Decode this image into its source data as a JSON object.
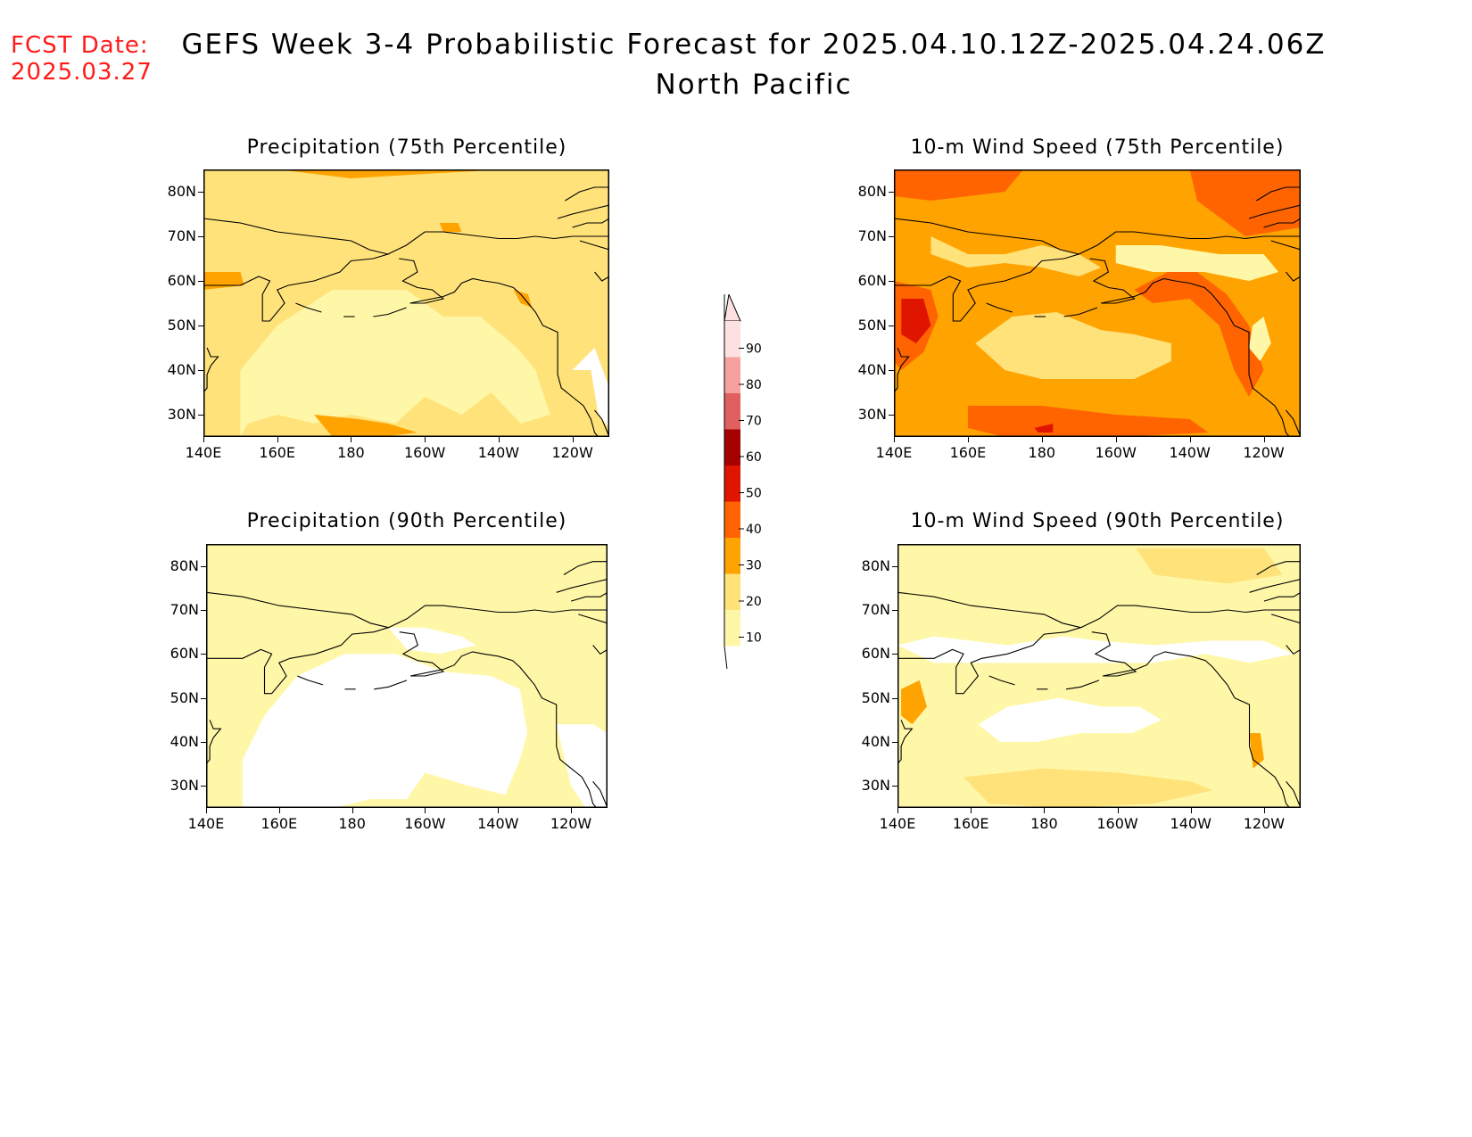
{
  "header": {
    "fcst_label": "FCST Date:",
    "fcst_date": "2025.03.27",
    "title": "GEFS Week 3-4 Probabilistic Forecast for 2025.04.10.12Z-2025.04.24.06Z",
    "subtitle": "North Pacific"
  },
  "palette": {
    "lt10": "#ffffff",
    "10-20": "#fff7a8",
    "20-30": "#ffe27a",
    "30-40": "#ffa300",
    "40-50": "#ff6400",
    "50-60": "#e01500",
    "60-70": "#a50000",
    "70-80": "#e06060",
    "80-90": "#f6a0a0",
    "gt90": "#fde0e0",
    "coast": "#000000"
  },
  "colorbar": {
    "labels": [
      "90",
      "80",
      "70",
      "60",
      "50",
      "40",
      "30",
      "20",
      "10"
    ]
  },
  "axes": {
    "lat_ticks": [
      "80N",
      "70N",
      "60N",
      "50N",
      "40N",
      "30N"
    ],
    "lon_ticks": [
      "140E",
      "160E",
      "180",
      "160W",
      "140W",
      "120W"
    ]
  },
  "panels": [
    {
      "id": "precip75",
      "title": "Precipitation (75th Percentile)",
      "background_class": "20-30",
      "sea_class": "10-20"
    },
    {
      "id": "wind75",
      "title": "10-m Wind Speed (75th Percentile)",
      "background_class": "30-40",
      "sea_class": "20-30"
    },
    {
      "id": "precip90",
      "title": "Precipitation (90th Percentile)",
      "background_class": "10-20",
      "sea_class": "lt10"
    },
    {
      "id": "wind90",
      "title": "10-m Wind Speed (90th Percentile)",
      "background_class": "10-20",
      "sea_class": "20-30"
    }
  ]
}
